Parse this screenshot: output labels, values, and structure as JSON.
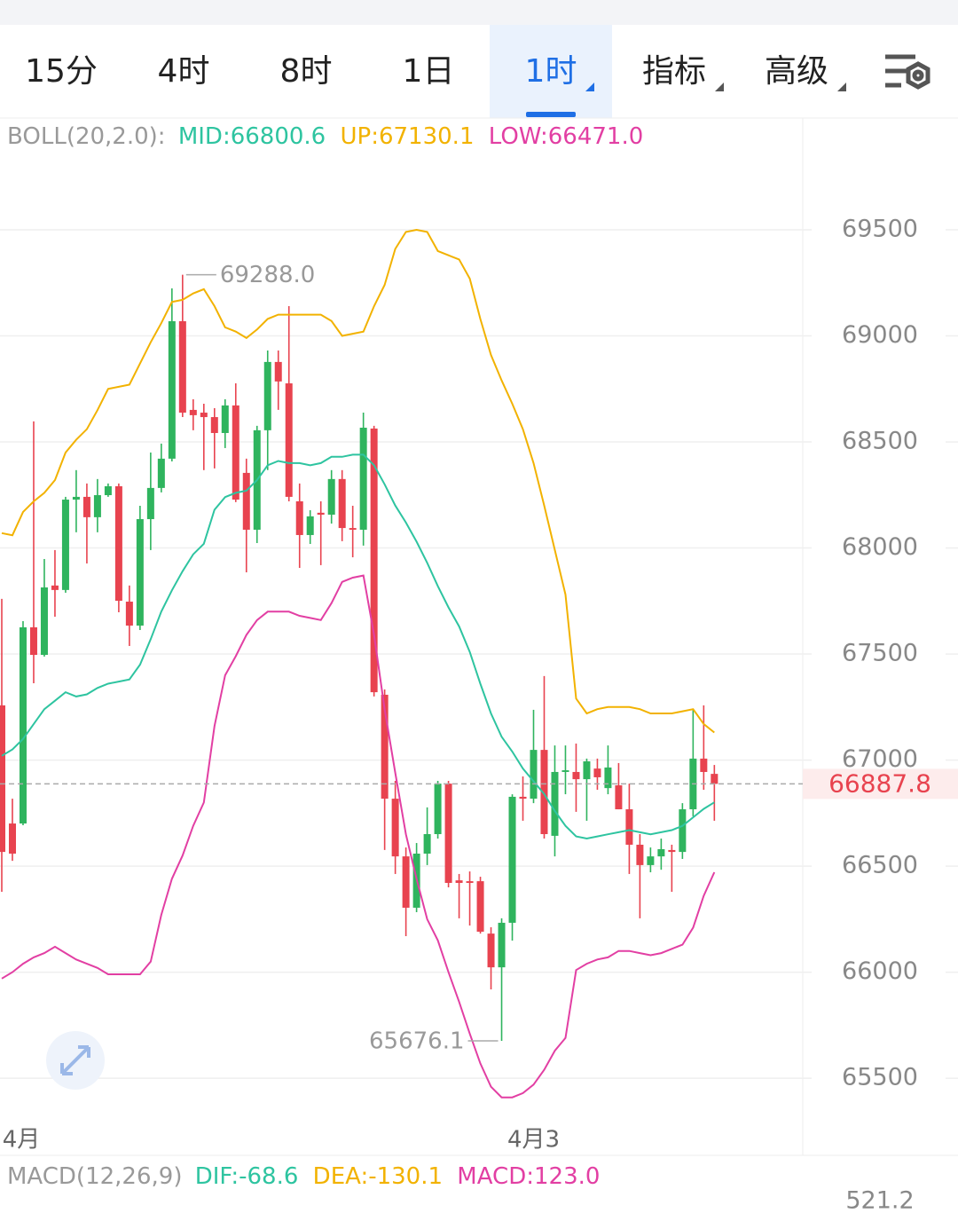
{
  "tabs": [
    "15分",
    "4时",
    "8时",
    "1日",
    "1时",
    "指标",
    "高级"
  ],
  "chart_data": {
    "type": "candlestick",
    "indicator": "BOLL(20,2.0):",
    "categories": [
      "4月",
      null,
      null,
      null,
      null,
      null,
      null,
      null,
      null,
      null,
      null,
      null,
      null,
      null,
      null,
      null,
      null,
      null,
      null,
      null,
      null,
      null,
      null,
      null,
      null,
      null,
      null,
      null,
      null,
      null,
      null,
      null,
      null,
      null,
      null,
      null,
      null,
      null,
      null,
      null,
      null,
      null,
      null,
      null,
      null,
      null,
      null,
      null,
      null,
      null,
      "4月3",
      null,
      null,
      null,
      null,
      null,
      null,
      null,
      null,
      null,
      null,
      null,
      null,
      null,
      null,
      null,
      null,
      null
    ],
    "open": [
      67258,
      66701,
      66701,
      67626,
      67496,
      67823,
      67802,
      68228,
      68241,
      68145,
      68249,
      68291,
      67747,
      67634,
      68136,
      68283,
      68421,
      69069,
      68651,
      68638,
      68617,
      68542,
      68672,
      68354,
      68086,
      68555,
      68877,
      68776,
      68220,
      68061,
      68166,
      68157,
      68325,
      68094,
      68086,
      68563,
      67308,
      66818,
      66546,
      66304,
      66559,
      66651,
      66889,
      66433,
      66429,
      66429,
      66182,
      66023,
      66233,
      66827,
      66818,
      67048,
      66643,
      66944,
      66944,
      66910,
      66960,
      66868,
      66881,
      66768,
      66601,
      66505,
      66546,
      66576,
      66567,
      66768,
      67007,
      66935
    ],
    "high": [
      67760,
      66818,
      67655,
      68597,
      67948,
      67990,
      68241,
      68367,
      68304,
      68325,
      68304,
      68304,
      67823,
      68199,
      68450,
      68492,
      69224,
      69288,
      68701,
      68680,
      68659,
      68701,
      68776,
      68421,
      68576,
      68931,
      68931,
      69140,
      68304,
      68178,
      68220,
      68367,
      68367,
      68199,
      68638,
      68576,
      67333,
      66902,
      66588,
      66609,
      66777,
      66902,
      66902,
      66463,
      66475,
      66450,
      66212,
      66254,
      66839,
      66923,
      67237,
      67396,
      67069,
      67069,
      67078,
      67007,
      67007,
      67069,
      66986,
      66889,
      66651,
      66588,
      66630,
      66601,
      66797,
      67237,
      67258,
      66977
    ],
    "low": [
      66379,
      66525,
      66693,
      67362,
      67488,
      67676,
      67789,
      68074,
      67927,
      68074,
      68241,
      67697,
      67538,
      67613,
      67990,
      68262,
      68408,
      68617,
      68555,
      68367,
      68375,
      68471,
      68216,
      67885,
      68023,
      68367,
      68651,
      68220,
      67906,
      68019,
      67919,
      68115,
      68032,
      67956,
      68011,
      67300,
      66576,
      66463,
      66170,
      66283,
      66505,
      66630,
      66400,
      66254,
      66220,
      66182,
      65919,
      65676.1,
      66149,
      66714,
      66797,
      66630,
      66546,
      66839,
      66756,
      66714,
      66860,
      66839,
      66768,
      66463,
      66254,
      66471,
      66483,
      66379,
      66534,
      66735,
      66860,
      66714
    ],
    "close": [
      66567,
      66559,
      67626,
      67496,
      67814,
      67802,
      68228,
      68241,
      68145,
      68249,
      68291,
      67751,
      67634,
      68136,
      68283,
      68421,
      69069,
      68638,
      68626,
      68617,
      68542,
      68672,
      68228,
      68086,
      68555,
      68877,
      68785,
      68241,
      68061,
      68149,
      68157,
      68325,
      68094,
      68086,
      68567,
      67320,
      66818,
      66546,
      66304,
      66559,
      66651,
      66889,
      66421,
      66421,
      66421,
      66191,
      66023,
      66233,
      66827,
      66818,
      67048,
      66651,
      66944,
      66952,
      66910,
      66994,
      66919,
      66965,
      66768,
      66601,
      66505,
      66546,
      66580,
      66567,
      66768,
      67007,
      66944,
      66887.8
    ],
    "up_color": "#2fb45e",
    "down_color": "#e8434f",
    "series": [
      {
        "name": "MID:66800.6",
        "color": "#2ec4a0",
        "values": [
          67020,
          67050,
          67100,
          67170,
          67240,
          67280,
          67320,
          67300,
          67310,
          67340,
          67360,
          67370,
          67380,
          67450,
          67570,
          67700,
          67800,
          67890,
          67970,
          68020,
          68180,
          68240,
          68260,
          68270,
          68320,
          68390,
          68410,
          68400,
          68400,
          68390,
          68400,
          68430,
          68430,
          68440,
          68440,
          68390,
          68300,
          68200,
          68120,
          68030,
          67930,
          67820,
          67720,
          67630,
          67510,
          67360,
          67220,
          67110,
          67040,
          66960,
          66900,
          66840,
          66760,
          66690,
          66640,
          66630,
          66640,
          66650,
          66660,
          66670,
          66660,
          66650,
          66660,
          66670,
          66690,
          66730,
          66770,
          66800.6
        ]
      },
      {
        "name": "UP:67130.1",
        "color": "#f2b200",
        "values": [
          68070,
          68060,
          68170,
          68220,
          68260,
          68320,
          68450,
          68510,
          68560,
          68650,
          68750,
          68760,
          68770,
          68870,
          68970,
          69060,
          69160,
          69170,
          69200,
          69220,
          69140,
          69040,
          69020,
          68990,
          69030,
          69080,
          69100,
          69100,
          69100,
          69100,
          69100,
          69070,
          69000,
          69010,
          69020,
          69140,
          69240,
          69410,
          69490,
          69500,
          69490,
          69400,
          69380,
          69360,
          69270,
          69080,
          68910,
          68790,
          68680,
          68560,
          68400,
          68200,
          67990,
          67780,
          67290,
          67220,
          67240,
          67250,
          67250,
          67250,
          67240,
          67220,
          67220,
          67220,
          67230,
          67240,
          67170,
          67130.1
        ]
      },
      {
        "name": "LOW:66471.0",
        "color": "#e23fa3",
        "values": [
          65970,
          66000,
          66040,
          66070,
          66090,
          66120,
          66090,
          66060,
          66040,
          66020,
          65990,
          65990,
          65990,
          65990,
          66050,
          66270,
          66440,
          66550,
          66690,
          66800,
          67160,
          67400,
          67490,
          67590,
          67660,
          67700,
          67700,
          67700,
          67680,
          67670,
          67660,
          67740,
          67840,
          67860,
          67870,
          67590,
          67240,
          66940,
          66650,
          66440,
          66250,
          66150,
          66000,
          65860,
          65710,
          65570,
          65460,
          65410,
          65410,
          65430,
          65470,
          65540,
          65630,
          65690,
          66010,
          66040,
          66060,
          66070,
          66100,
          66100,
          66090,
          66080,
          66090,
          66110,
          66130,
          66210,
          66360,
          66471
        ]
      }
    ],
    "max_label": "69288.0",
    "min_label": "65676.1",
    "ylim": [
      65304,
      70027
    ],
    "yticks": [
      65500,
      66000,
      66500,
      67000,
      67500,
      68000,
      68500,
      69000,
      69500
    ],
    "grid": true
  },
  "macd": {
    "title": "MACD(12,26,9)",
    "dif": "DIF:-68.6",
    "dea": "DEA:-130.1",
    "macd": "MACD:123.0",
    "axis_label": "521.2"
  }
}
